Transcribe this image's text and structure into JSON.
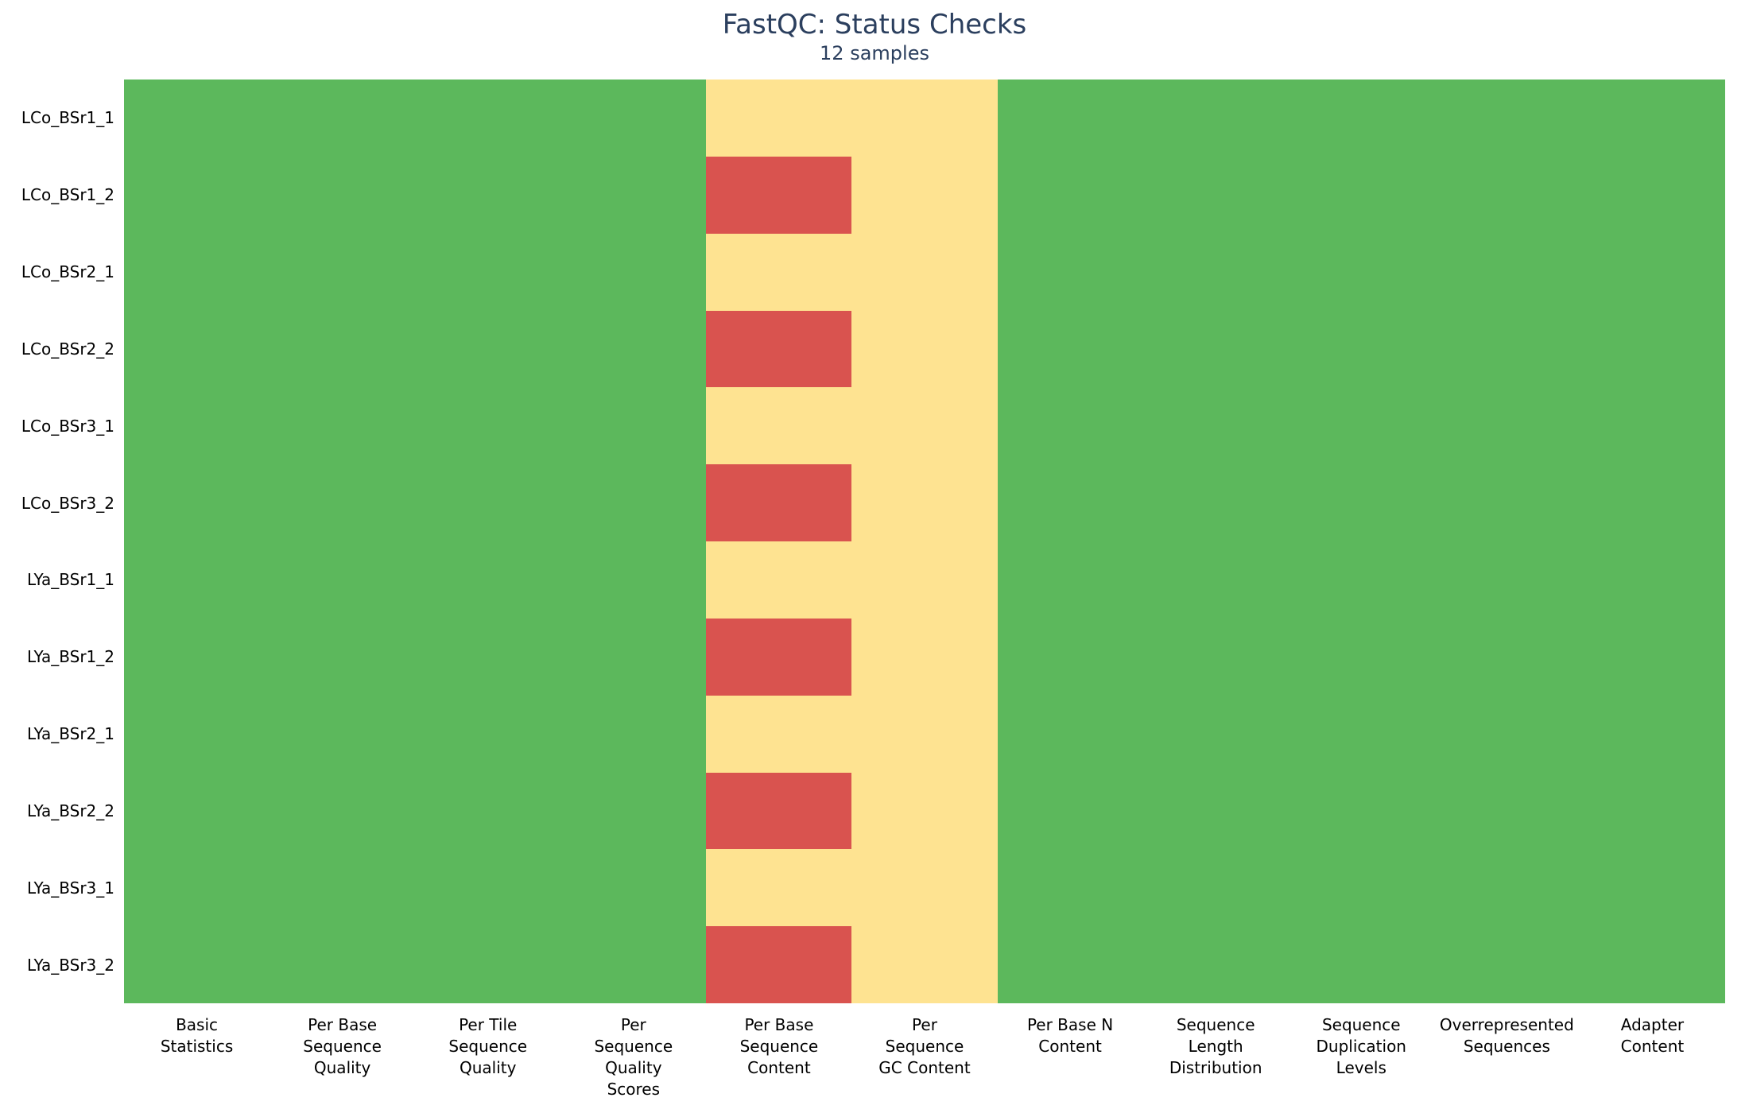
{
  "header": {
    "title": "FastQC: Status Checks",
    "subtitle": "12 samples"
  },
  "chart_data": {
    "type": "heatmap",
    "title": "FastQC: Status Checks",
    "subtitle": "12 samples",
    "legend_position": "none",
    "grid": false,
    "y_samples": [
      "LCo_BSr1_1",
      "LCo_BSr1_2",
      "LCo_BSr2_1",
      "LCo_BSr2_2",
      "LCo_BSr3_1",
      "LCo_BSr3_2",
      "LYa_BSr1_1",
      "LYa_BSr1_2",
      "LYa_BSr2_1",
      "LYa_BSr2_2",
      "LYa_BSr3_1",
      "LYa_BSr3_2"
    ],
    "x_checks": [
      {
        "label": "Basic Statistics",
        "lines": [
          "Basic",
          "Statistics"
        ]
      },
      {
        "label": "Per Base Sequence Quality",
        "lines": [
          "Per Base",
          "Sequence",
          "Quality"
        ]
      },
      {
        "label": "Per Tile Sequence Quality",
        "lines": [
          "Per Tile",
          "Sequence",
          "Quality"
        ]
      },
      {
        "label": "Per Sequence Quality Scores",
        "lines": [
          "Per",
          "Sequence",
          "Quality",
          "Scores"
        ]
      },
      {
        "label": "Per Base Sequence Content",
        "lines": [
          "Per Base",
          "Sequence",
          "Content"
        ]
      },
      {
        "label": "Per Sequence GC Content",
        "lines": [
          "Per",
          "Sequence",
          "GC Content"
        ]
      },
      {
        "label": "Per Base N Content",
        "lines": [
          "Per Base N",
          "Content"
        ]
      },
      {
        "label": "Sequence Length Distribution",
        "lines": [
          "Sequence",
          "Length",
          "Distribution"
        ]
      },
      {
        "label": "Sequence Duplication Levels",
        "lines": [
          "Sequence",
          "Duplication",
          "Levels"
        ]
      },
      {
        "label": "Overrepresented Sequences",
        "lines": [
          "Overrepresented",
          "Sequences"
        ]
      },
      {
        "label": "Adapter Content",
        "lines": [
          "Adapter",
          "Content"
        ]
      }
    ],
    "status_colors": {
      "pass": "#5cb85c",
      "warn": "#fee391",
      "fail": "#d9534f"
    },
    "values": [
      [
        "pass",
        "pass",
        "pass",
        "pass",
        "warn",
        "warn",
        "pass",
        "pass",
        "pass",
        "pass",
        "pass"
      ],
      [
        "pass",
        "pass",
        "pass",
        "pass",
        "fail",
        "warn",
        "pass",
        "pass",
        "pass",
        "pass",
        "pass"
      ],
      [
        "pass",
        "pass",
        "pass",
        "pass",
        "warn",
        "warn",
        "pass",
        "pass",
        "pass",
        "pass",
        "pass"
      ],
      [
        "pass",
        "pass",
        "pass",
        "pass",
        "fail",
        "warn",
        "pass",
        "pass",
        "pass",
        "pass",
        "pass"
      ],
      [
        "pass",
        "pass",
        "pass",
        "pass",
        "warn",
        "warn",
        "pass",
        "pass",
        "pass",
        "pass",
        "pass"
      ],
      [
        "pass",
        "pass",
        "pass",
        "pass",
        "fail",
        "warn",
        "pass",
        "pass",
        "pass",
        "pass",
        "pass"
      ],
      [
        "pass",
        "pass",
        "pass",
        "pass",
        "warn",
        "warn",
        "pass",
        "pass",
        "pass",
        "pass",
        "pass"
      ],
      [
        "pass",
        "pass",
        "pass",
        "pass",
        "fail",
        "warn",
        "pass",
        "pass",
        "pass",
        "pass",
        "pass"
      ],
      [
        "pass",
        "pass",
        "pass",
        "pass",
        "warn",
        "warn",
        "pass",
        "pass",
        "pass",
        "pass",
        "pass"
      ],
      [
        "pass",
        "pass",
        "pass",
        "pass",
        "fail",
        "warn",
        "pass",
        "pass",
        "pass",
        "pass",
        "pass"
      ],
      [
        "pass",
        "pass",
        "pass",
        "pass",
        "warn",
        "warn",
        "pass",
        "pass",
        "pass",
        "pass",
        "pass"
      ],
      [
        "pass",
        "pass",
        "pass",
        "pass",
        "fail",
        "warn",
        "pass",
        "pass",
        "pass",
        "pass",
        "pass"
      ]
    ],
    "title_color": "#2b3f5e",
    "label_color": "#000000"
  }
}
